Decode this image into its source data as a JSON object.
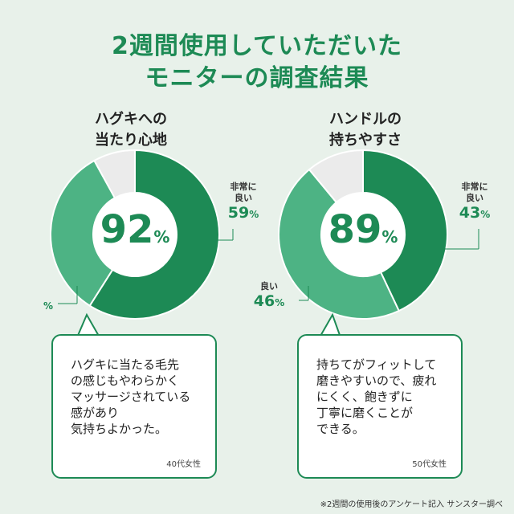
{
  "title": {
    "line1": "2週間使用していただいた",
    "line2": "モニターの調査結果"
  },
  "colors": {
    "dark": "#1d8a55",
    "light": "#4db384",
    "rest": "#ebebeb"
  },
  "chart_data": [
    {
      "type": "pie",
      "title": "ハグキへの当たり心地",
      "title_lines": [
        "ハグキへの",
        "当たり心地"
      ],
      "total_label": "92",
      "total_unit": "%",
      "series": [
        {
          "name": "非常に良い",
          "label_lines": [
            "非常に",
            "良い"
          ],
          "value": 59
        },
        {
          "name": "",
          "label_lines": [],
          "value": 33
        },
        {
          "name": "",
          "label_lines": [],
          "value": 8
        }
      ],
      "visible_values": [
        {
          "text": "59",
          "unit": "%"
        },
        {
          "text": "",
          "unit": "%"
        }
      ]
    },
    {
      "type": "pie",
      "title": "ハンドルの持ちやすさ",
      "title_lines": [
        "ハンドルの",
        "持ちやすさ"
      ],
      "total_label": "89",
      "total_unit": "%",
      "series": [
        {
          "name": "非常に良い",
          "label_lines": [
            "非常に",
            "良い"
          ],
          "value": 43
        },
        {
          "name": "良い",
          "label_lines": [
            "良い"
          ],
          "value": 46
        },
        {
          "name": "",
          "label_lines": [],
          "value": 11
        }
      ],
      "visible_values": [
        {
          "text": "43",
          "unit": "%"
        },
        {
          "text": "46",
          "unit": "%"
        }
      ]
    }
  ],
  "comments": [
    {
      "lines": [
        "ハグキに当たる毛先",
        "の感じもやわらかく",
        "マッサージされている",
        "感があり",
        "気持ちよかった。"
      ],
      "who": "40代女性"
    },
    {
      "lines": [
        "持ちてがフィットして",
        "磨きやすいので、疲れ",
        "にくく、飽きずに",
        "丁寧に磨くことが",
        "できる。"
      ],
      "who": "50代女性"
    }
  ],
  "note": "※2週間の使用後のアンケート記入 サンスター調べ"
}
